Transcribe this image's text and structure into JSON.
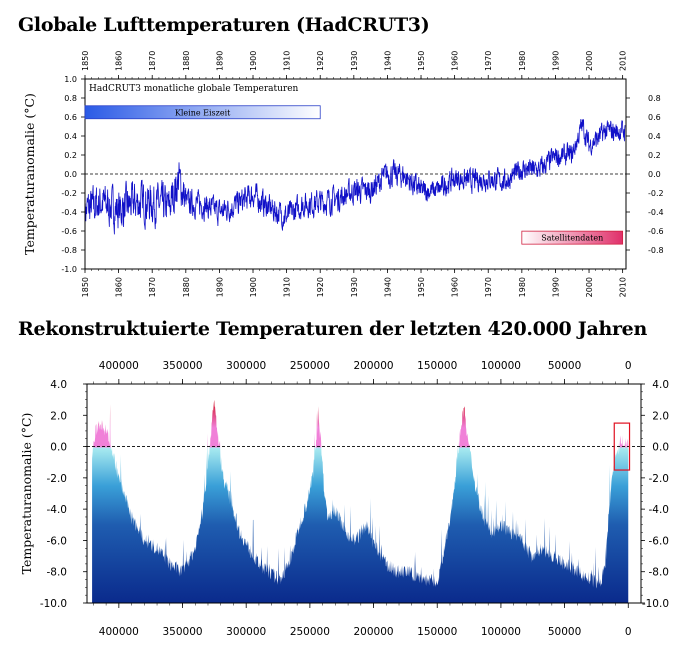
{
  "chart_data": [
    {
      "type": "line",
      "title": "Globale Lufttemperaturen (HadCRUT3)",
      "inner_title": "HadCRUT3 monatliche globale Temperaturen",
      "ylabel": "Temperaturanomalie (°C)",
      "xlim": [
        1850,
        2011
      ],
      "ylim": [
        -1.0,
        1.0
      ],
      "x_ticks": [
        1850,
        1860,
        1870,
        1880,
        1890,
        1900,
        1910,
        1920,
        1930,
        1940,
        1950,
        1960,
        1970,
        1980,
        1990,
        2000,
        2010
      ],
      "y_ticks": [
        "1.0",
        "0.8",
        "0.6",
        "0.4",
        "0.2",
        "0.0",
        "-0.2",
        "-0.4",
        "-0.6",
        "-0.8",
        "-1.0"
      ],
      "y_ticks_right": [
        "0.8",
        "0.6",
        "0.4",
        "0.2",
        "0.0",
        "-0.2",
        "-0.4",
        "-0.6",
        "-0.8"
      ],
      "reference_line": 0.0,
      "series_color": "#1010c8",
      "series_anchors": {
        "x": [
          1850,
          1855,
          1860,
          1865,
          1870,
          1875,
          1878,
          1880,
          1885,
          1890,
          1895,
          1900,
          1905,
          1910,
          1915,
          1920,
          1925,
          1930,
          1935,
          1940,
          1945,
          1950,
          1955,
          1960,
          1965,
          1970,
          1975,
          1980,
          1985,
          1990,
          1995,
          1998,
          2000,
          2005,
          2010
        ],
        "y": [
          -0.38,
          -0.3,
          -0.38,
          -0.3,
          -0.3,
          -0.35,
          -0.05,
          -0.3,
          -0.32,
          -0.4,
          -0.32,
          -0.22,
          -0.36,
          -0.45,
          -0.32,
          -0.3,
          -0.26,
          -0.18,
          -0.17,
          0.0,
          -0.02,
          -0.18,
          -0.17,
          -0.05,
          -0.07,
          -0.05,
          -0.08,
          0.05,
          0.04,
          0.18,
          0.2,
          0.52,
          0.3,
          0.45,
          0.45
        ]
      },
      "annotations": [
        {
          "label": "Kleine Eiszeit",
          "x_start": 1850,
          "x_end": 1920,
          "y": 0.65,
          "style": "blue-gradient"
        },
        {
          "label": "Satellitendaten",
          "x_start": 1980,
          "x_end": 2010,
          "y": -0.67,
          "style": "red-gradient"
        }
      ]
    },
    {
      "type": "area",
      "title": "Rekonstruktuierte Temperaturen der letzten 420.000 Jahren",
      "ylabel": "Temperaturanomalie (°C)",
      "xlim": [
        425000,
        -10000
      ],
      "ylim": [
        -10.0,
        4.0
      ],
      "x_ticks": [
        "400000",
        "350000",
        "300000",
        "250000",
        "200000",
        "150000",
        "100000",
        "50000",
        "0"
      ],
      "x_tick_values": [
        400000,
        350000,
        300000,
        250000,
        200000,
        150000,
        100000,
        50000,
        0
      ],
      "y_ticks": [
        "4.0",
        "2.0",
        "0.0",
        "-2.0",
        "-4.0",
        "-6.0",
        "-8.0",
        "-10.0"
      ],
      "reference_line": 0.0,
      "colors": {
        "cold": "#0a2a8c",
        "mid": "#3aa0d8",
        "zero": "#a8eaf0",
        "warm": "#f080d8",
        "hot": "#d01020"
      },
      "series": [
        {
          "name": "",
          "x": [
            421000,
            418000,
            415000,
            412000,
            409000,
            406000,
            400000,
            390000,
            380000,
            370000,
            360000,
            350000,
            340000,
            334000,
            330000,
            327000,
            325000,
            322000,
            318000,
            312000,
            305000,
            298000,
            290000,
            282000,
            274000,
            266000,
            258000,
            252000,
            248000,
            245000,
            243000,
            241000,
            239000,
            236000,
            230000,
            222000,
            214000,
            206000,
            198000,
            190000,
            182000,
            174000,
            166000,
            158000,
            150000,
            144000,
            138000,
            134000,
            131000,
            129000,
            127000,
            124000,
            120000,
            114000,
            108000,
            100000,
            92000,
            84000,
            76000,
            68000,
            60000,
            50000,
            40000,
            30000,
            22000,
            18000,
            15000,
            12000,
            9000,
            6000,
            3000,
            0
          ],
          "y": [
            -0.5,
            1.0,
            1.5,
            1.2,
            0.9,
            0.0,
            -2.0,
            -4.5,
            -6.0,
            -6.5,
            -7.5,
            -8.0,
            -6.5,
            -4.0,
            -1.0,
            1.5,
            2.8,
            0.5,
            -2.0,
            -3.5,
            -5.5,
            -6.5,
            -7.5,
            -8.0,
            -8.5,
            -7.5,
            -5.0,
            -3.5,
            -2.0,
            0.5,
            1.8,
            0.0,
            -2.5,
            -4.5,
            -4.0,
            -5.5,
            -6.0,
            -5.0,
            -6.5,
            -7.5,
            -8.0,
            -8.0,
            -8.3,
            -8.5,
            -8.7,
            -6.5,
            -3.5,
            -0.5,
            1.5,
            2.6,
            1.0,
            -0.5,
            -2.5,
            -4.5,
            -5.5,
            -5.0,
            -5.5,
            -6.0,
            -7.0,
            -6.5,
            -7.0,
            -7.5,
            -8.0,
            -8.5,
            -8.8,
            -7.5,
            -4.0,
            -1.5,
            -0.5,
            0.2,
            0.3,
            0.1
          ]
        }
      ],
      "annotations": [
        {
          "label": "",
          "x_start": 11000,
          "x_end": -1000,
          "y_start": -1.5,
          "y_end": 1.5,
          "style": "red-outline-box"
        }
      ]
    }
  ]
}
